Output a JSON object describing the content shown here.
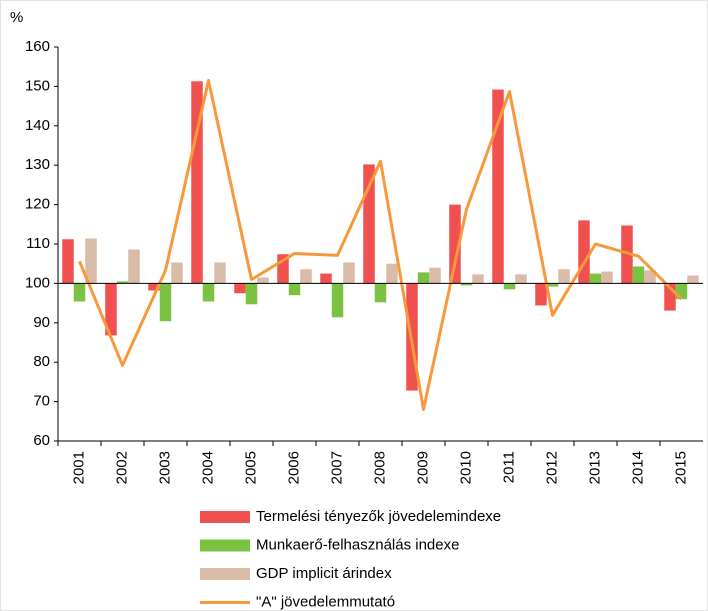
{
  "chart_data": {
    "type": "bar-line",
    "y_label": "%",
    "categories": [
      "2001",
      "2002",
      "2003",
      "2004",
      "2005",
      "2006",
      "2007",
      "2008",
      "2009",
      "2010",
      "2011",
      "2012",
      "2013",
      "2014",
      "2015"
    ],
    "bar_base": 100,
    "series": [
      {
        "name": "Termelési tényezők jövedelemindexe",
        "type": "bar",
        "color": "#f0514e",
        "values": [
          111.2,
          86.8,
          98.2,
          151.3,
          97.5,
          107.4,
          102.5,
          130.2,
          72.8,
          120,
          149.2,
          94.4,
          116,
          114.7,
          93.1
        ]
      },
      {
        "name": "Munkaerő-felhasználás indexe",
        "type": "bar",
        "color": "#7cc242",
        "values": [
          95.4,
          100.5,
          90.4,
          95.4,
          94.7,
          97,
          91.4,
          95.2,
          102.8,
          99.5,
          98.5,
          99.2,
          102.5,
          104.3,
          96
        ]
      },
      {
        "name": "GDP implicit árindex",
        "type": "bar",
        "color": "#d9bba8",
        "values": [
          111.4,
          108.6,
          105.3,
          105.3,
          101.5,
          103.6,
          105.3,
          105,
          104,
          102.3,
          102.3,
          103.6,
          103,
          103.3,
          102
        ]
      },
      {
        "name": "\"A\" jövedelemmutató",
        "type": "line",
        "color": "#f7993b",
        "values": [
          105.6,
          79.2,
          103.3,
          151.5,
          101,
          107.6,
          107.1,
          131,
          68,
          118.8,
          148.7,
          91.9,
          110,
          106.9,
          96
        ]
      }
    ],
    "ylim": [
      60,
      160
    ],
    "yticks": [
      60,
      70,
      80,
      90,
      100,
      110,
      120,
      130,
      140,
      150,
      160
    ],
    "grid": false
  }
}
